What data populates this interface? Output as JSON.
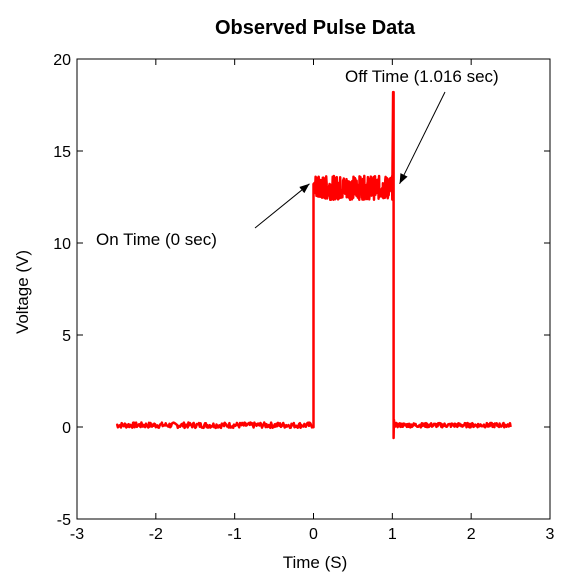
{
  "chart_data": {
    "type": "line",
    "title": "Observed Pulse Data",
    "xlabel": "Time (S)",
    "ylabel": "Voltage (V)",
    "xlim": [
      -3,
      3
    ],
    "ylim": [
      -5,
      20
    ],
    "xticks": [
      -3,
      -2,
      -1,
      0,
      1,
      2,
      3
    ],
    "yticks": [
      -5,
      0,
      5,
      10,
      15,
      20
    ],
    "grid": false,
    "line_color": "#ff0000",
    "series": [
      {
        "x": [
          -2.5,
          0,
          0,
          0.02,
          1.0,
          1.01,
          1.016,
          1.016,
          1.02,
          1.03,
          2.5
        ],
        "y": [
          0.1,
          0.1,
          13.2,
          13.0,
          13.0,
          18.2,
          18.2,
          -0.6,
          0.1,
          0.1,
          0.1
        ]
      }
    ],
    "annotations": [
      {
        "text": "On Time (0 sec)",
        "x": 0,
        "y": 13
      },
      {
        "text": "Off Time (1.016 sec)",
        "x": 1.016,
        "y": 13
      }
    ]
  }
}
